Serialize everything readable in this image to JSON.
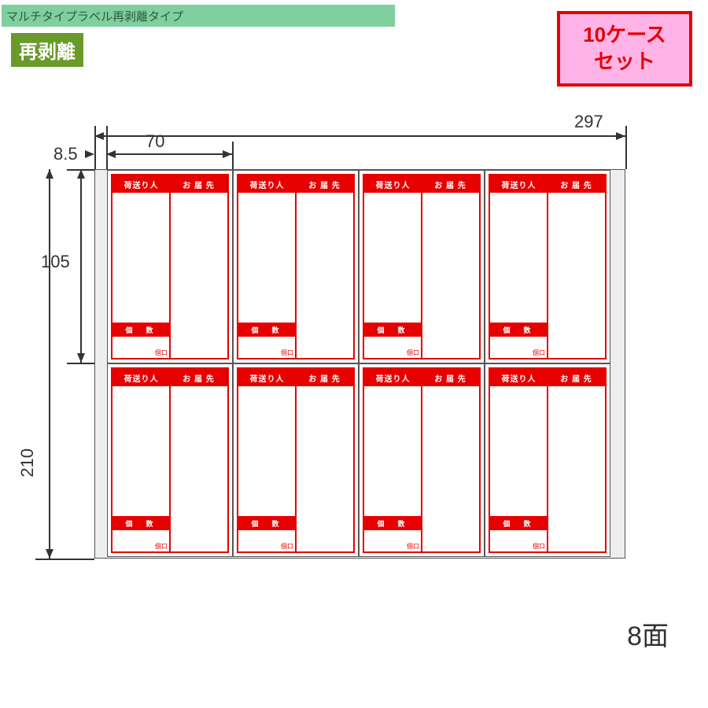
{
  "colors": {
    "header_strip_bg": "#7fcf9f",
    "header_strip_text": "#2d5a3d",
    "sub_badge_bg": "#6a9a2a",
    "sub_badge_text": "#ffffff",
    "case_badge_bg": "#ffb3e6",
    "case_badge_border": "#e60000",
    "case_badge_text": "#e60000",
    "label_accent": "#e60000",
    "sheet_border": "#555555",
    "sheet_bg": "#eeeeee",
    "dim_text": "#333333"
  },
  "header": {
    "strip_text": "マルチタイプラベル再剥離タイプ",
    "sub_badge": "再剥離"
  },
  "case_badge": {
    "line1": "10ケース",
    "line2": "セット"
  },
  "label_template": {
    "header_left": "荷送り人",
    "header_right": "お 届 先",
    "qty_label": "個　数",
    "qty_unit": "個口"
  },
  "diagram": {
    "type": "label_sheet_layout",
    "sheet_width_mm": 297,
    "sheet_height_mm": 210,
    "left_margin_mm": 8.5,
    "label_width_mm": 70,
    "label_height_mm": 105,
    "columns": 4,
    "rows": 2,
    "faces_label": "8面",
    "dimension_fontsize": 22,
    "dimensions": {
      "top_full": "297",
      "top_partial": "70",
      "top_left_margin": "8.5",
      "left_partial": "105",
      "left_full": "210"
    }
  }
}
